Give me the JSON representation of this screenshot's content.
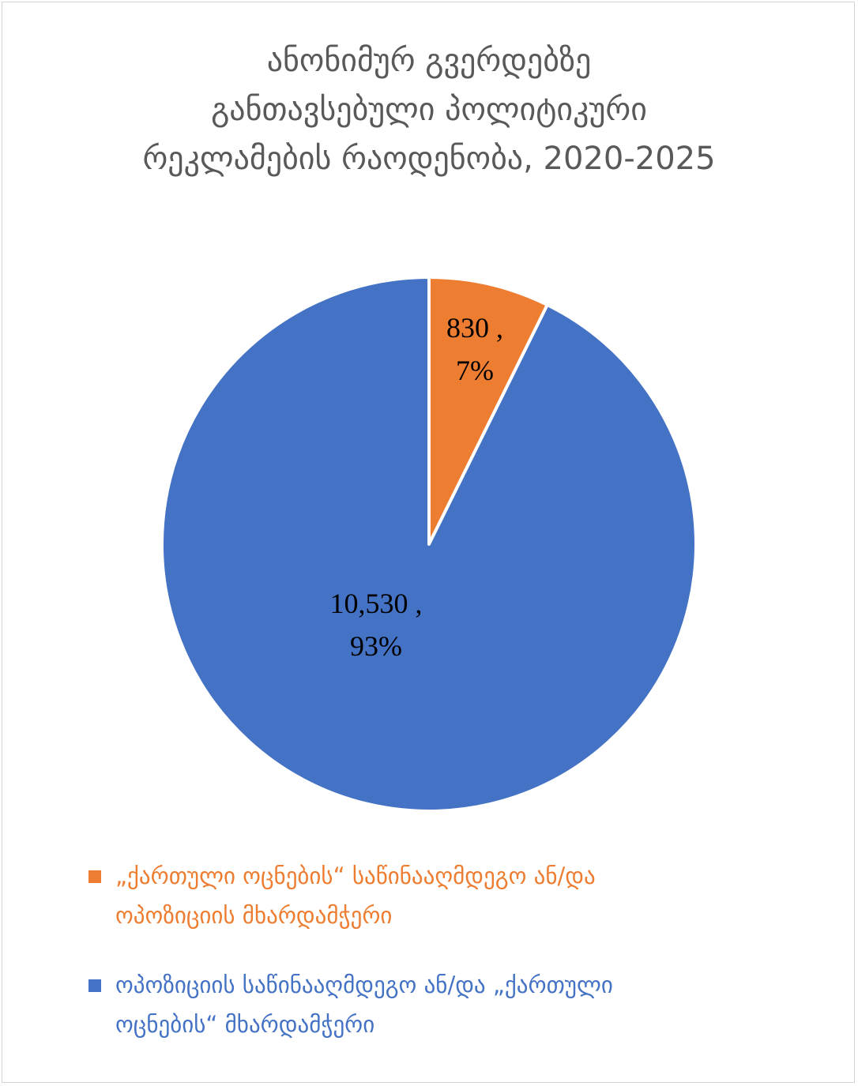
{
  "chart_data": {
    "type": "pie",
    "title_lines": [
      "ანონიმურ გვერდებზე",
      "განთავსებული პოლიტიკური",
      "რეკლამების რაოდენობა, 2020-2025"
    ],
    "series": [
      {
        "name_lines": [
          "„ქართული ოცნების“ საწინააღმდეგო ან/და",
          "ოპოზიციის მხარდამჭერი"
        ],
        "value": 830,
        "value_label": "830",
        "percent_label": "7%",
        "color": "#ED7D31"
      },
      {
        "name_lines": [
          "ოპოზიციის საწინააღმდეგო ან/და „ქართული",
          "ოცნების“ მხარდამჭერი"
        ],
        "value": 10530,
        "value_label": "10,530",
        "percent_label": "93%",
        "color": "#4472C4"
      }
    ],
    "legend_position": "bottom",
    "label_separator": " ,"
  }
}
